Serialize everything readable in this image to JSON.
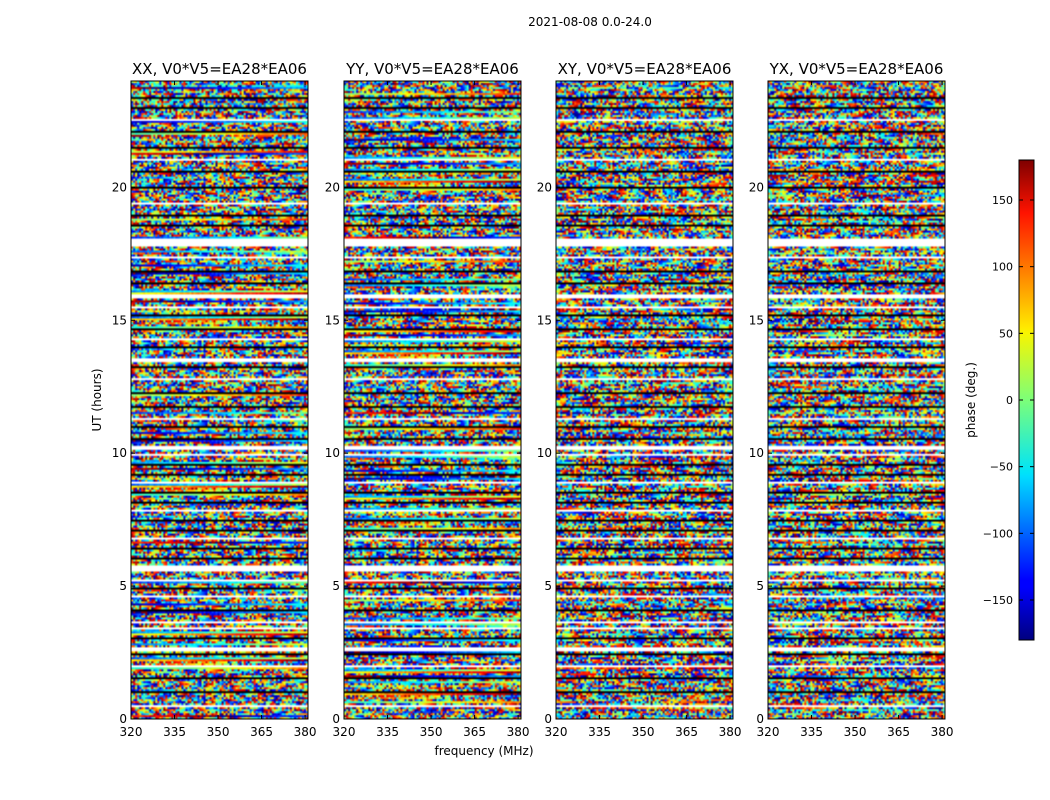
{
  "figure_title": "2021-08-08 0.0-24.0",
  "chart_data": {
    "type": "heatmap",
    "title": "2021-08-08 0.0-24.0",
    "xlabel": "frequency (MHz)",
    "ylabel": "UT (hours)",
    "xlim": [
      320,
      381
    ],
    "ylim": [
      0,
      24
    ],
    "xticks": [
      320,
      335,
      350,
      365,
      380
    ],
    "yticks": [
      0,
      5,
      10,
      15,
      20
    ],
    "panels": [
      {
        "title": "XX, V0*V5=EA28*EA06",
        "pol": "XX"
      },
      {
        "title": "YY, V0*V5=EA28*EA06",
        "pol": "YY"
      },
      {
        "title": "XY, V0*V5=EA28*EA06",
        "pol": "XY"
      },
      {
        "title": "YX, V0*V5=EA28*EA06",
        "pol": "YX"
      }
    ],
    "colorbar": {
      "label": "phase (deg.)",
      "range": [
        -180,
        180
      ],
      "ticks": [
        -150,
        -100,
        -50,
        0,
        50,
        100,
        150
      ],
      "tick_labels": [
        "−150",
        "−100",
        "−50",
        "0",
        "50",
        "100",
        "150"
      ],
      "colormap": "jet"
    },
    "flagged_gaps_hours": [
      [
        2.55,
        2.7
      ],
      [
        3.35,
        3.45
      ],
      [
        4.55,
        4.65
      ],
      [
        5.55,
        5.75
      ],
      [
        10.1,
        10.25
      ],
      [
        13.45,
        13.6
      ],
      [
        15.85,
        16.0
      ],
      [
        17.8,
        18.1
      ]
    ],
    "scan_boundaries_hours": [
      0.55,
      1.05,
      1.55,
      2.05,
      2.45,
      3.05,
      3.65,
      4.15,
      4.95,
      5.25,
      6.1,
      6.45,
      6.8,
      7.15,
      7.5,
      7.85,
      8.2,
      8.55,
      8.9,
      9.25,
      9.6,
      9.95,
      10.6,
      11.0,
      11.35,
      11.8,
      12.3,
      12.8,
      13.3,
      14.0,
      14.3,
      14.7,
      15.2,
      15.5,
      16.4,
      16.9,
      17.4,
      18.6,
      18.95,
      19.45,
      20.0,
      20.6,
      21.1,
      21.55,
      22.1,
      22.55,
      23.0,
      23.4
    ]
  }
}
